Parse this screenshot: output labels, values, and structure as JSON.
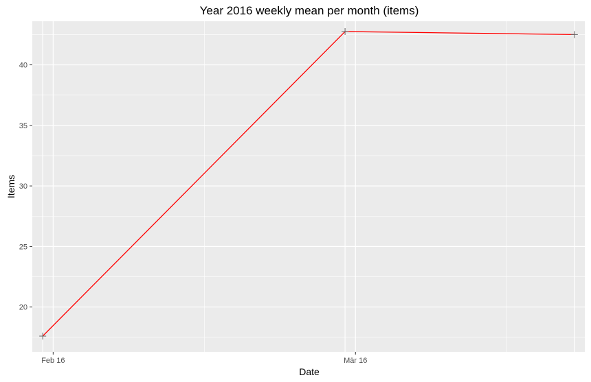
{
  "chart_data": {
    "type": "line",
    "title": "Year 2016 weekly mean per month (items)",
    "xlabel": "Date",
    "ylabel": "Items",
    "x_type": "date",
    "xlim": [
      "2016-02-14",
      "2016-04-07"
    ],
    "ylim": [
      16.3,
      43.6
    ],
    "x_ticks": [
      {
        "value": "2016-02-16",
        "label": "Feb 16"
      },
      {
        "value": "2016-03-16",
        "label": "Mär 16"
      }
    ],
    "y_ticks": [
      20,
      25,
      30,
      35,
      40
    ],
    "grid": true,
    "series": [
      {
        "line_color": "#ff0000",
        "marker": "+",
        "marker_color": "#666666",
        "points": [
          {
            "x": "2016-02-15",
            "y": 17.6
          },
          {
            "x": "2016-03-15",
            "y": 42.75
          },
          {
            "x": "2016-04-06",
            "y": 42.5
          }
        ]
      }
    ]
  }
}
